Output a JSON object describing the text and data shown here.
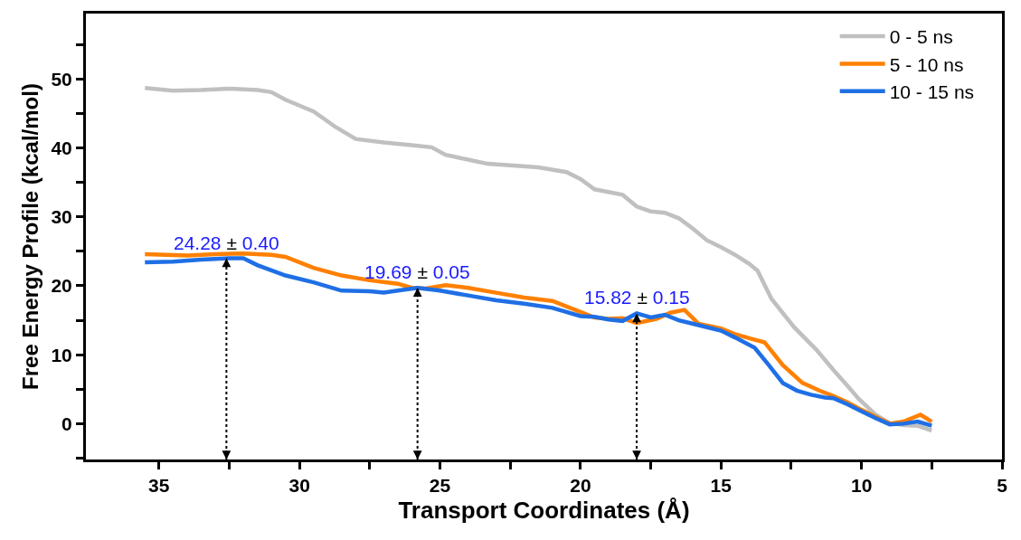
{
  "chart_data": {
    "type": "line",
    "xlabel": "Transport Coordinates (Å)",
    "ylabel": "Free Energy Profile (kcal/mol)",
    "xlim": [
      37.6,
      5
    ],
    "xticks": [
      35,
      {
        "value": 32.5,
        "label": null
      },
      30,
      {
        "value": 27.5,
        "label": null
      },
      25,
      {
        "value": 22.5,
        "label": null
      },
      20,
      {
        "value": 17.5,
        "label": null
      },
      15,
      {
        "value": 12.5,
        "label": null
      },
      10,
      {
        "value": 7.5,
        "label": null
      },
      5
    ],
    "ylim": [
      -5.2,
      59.5
    ],
    "yticks": [
      {
        "value": -5,
        "label": null
      },
      0,
      {
        "value": 5,
        "label": null
      },
      10,
      {
        "value": 15,
        "label": null
      },
      20,
      {
        "value": 25,
        "label": null
      },
      30,
      {
        "value": 35,
        "label": null
      },
      40,
      {
        "value": 45,
        "label": null
      },
      50,
      {
        "value": 55,
        "label": null
      }
    ],
    "legend": "top right",
    "line_style": "solid",
    "marker": "none",
    "series": [
      {
        "name": "0 - 5 ns",
        "color": "#c0c0c0",
        "x": [
          35.5,
          34.5,
          33.5,
          32.5,
          31.5,
          31,
          30.5,
          29.5,
          28.7,
          28,
          27,
          26,
          25.3,
          24.8,
          24,
          23.3,
          22.5,
          21.5,
          20.5,
          20,
          19.5,
          18.5,
          18,
          17.5,
          17,
          16.5,
          16,
          15.5,
          15,
          14.5,
          14,
          13.7,
          13.2,
          12.4,
          11.6,
          11,
          10.5,
          10.1,
          9.5,
          9,
          8.5,
          8,
          7.5
        ],
        "values": [
          48.7,
          48.3,
          48.4,
          48.6,
          48.4,
          48.1,
          47,
          45.3,
          43,
          41.3,
          40.8,
          40.4,
          40.1,
          39,
          38.3,
          37.7,
          37.5,
          37.2,
          36.5,
          35.5,
          34,
          33.2,
          31.5,
          30.8,
          30.6,
          29.8,
          28.3,
          26.6,
          25.6,
          24.5,
          23.2,
          22.2,
          18.1,
          14,
          10.7,
          7.8,
          5.5,
          3.6,
          1.3,
          0.1,
          -0.2,
          -0.3,
          -1
        ]
      },
      {
        "name": "5 - 10 ns",
        "color": "#ff8000",
        "x": [
          35.5,
          34,
          33,
          32,
          31,
          30.5,
          29.5,
          28.5,
          27.5,
          26.5,
          26,
          25.5,
          24.8,
          24,
          23,
          22,
          21,
          20,
          19.5,
          19,
          18.5,
          18,
          17.3,
          16.8,
          16.3,
          15.8,
          15,
          14.5,
          14,
          13.45,
          12.8,
          12.1,
          11.5,
          11,
          10.5,
          10,
          9.5,
          9,
          8.5,
          7.9,
          7.5
        ],
        "values": [
          24.6,
          24.4,
          24.6,
          24.7,
          24.5,
          24.2,
          22.6,
          21.5,
          20.8,
          20.3,
          19.7,
          19.6,
          20.1,
          19.7,
          19,
          18.3,
          17.8,
          16.2,
          15.4,
          15.2,
          15.3,
          14.6,
          15.2,
          16.1,
          16.5,
          14.5,
          13.8,
          13,
          12.4,
          11.8,
          8.5,
          5.9,
          4.8,
          4,
          3.1,
          2,
          1,
          0,
          0.3,
          1.3,
          0.3
        ]
      },
      {
        "name": "10 - 15 ns",
        "color": "#1f6fe5",
        "x": [
          35.5,
          34.5,
          33.5,
          32.5,
          32,
          31.5,
          30.5,
          29.5,
          28.5,
          27.5,
          27,
          26.5,
          25.8,
          25,
          24,
          23,
          22,
          21,
          20,
          19.5,
          19,
          18.5,
          18,
          17.5,
          17,
          16.5,
          15.5,
          15,
          14.5,
          13.8,
          13.3,
          12.8,
          12.3,
          11.8,
          11.3,
          11,
          10.5,
          10,
          9.5,
          9,
          8.5,
          8,
          7.5
        ],
        "values": [
          23.4,
          23.5,
          23.8,
          24,
          24,
          23,
          21.5,
          20.5,
          19.3,
          19.2,
          19,
          19.3,
          19.7,
          19.3,
          18.6,
          17.9,
          17.4,
          16.8,
          15.6,
          15.5,
          15.1,
          14.9,
          16,
          15.4,
          15.8,
          15,
          14,
          13.5,
          12.5,
          11,
          8.5,
          5.9,
          4.8,
          4.2,
          3.8,
          3.7,
          2.8,
          1.8,
          0.8,
          -0.1,
          0,
          0.3,
          -0.3
        ]
      }
    ],
    "annotations": [
      {
        "text": "24.28 ± 0.40",
        "x": 32.6,
        "y": 24
      },
      {
        "text": "19.69 ± 0.05",
        "x": 25.8,
        "y": 19.7
      },
      {
        "text": "15.82 ± 0.15",
        "x": 18.0,
        "y": 16
      }
    ]
  }
}
